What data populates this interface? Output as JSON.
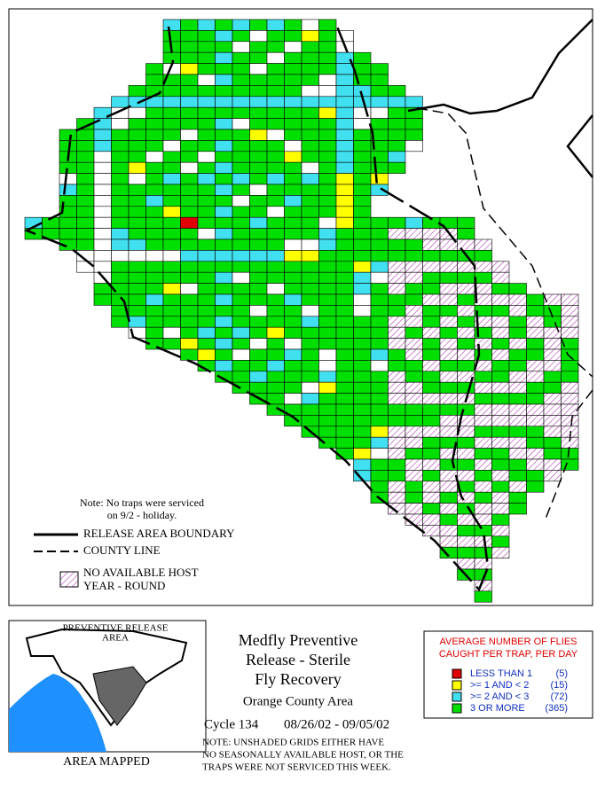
{
  "map_notes": {
    "note": [
      "Note: No traps were serviced",
      "on 9/2 - holiday."
    ],
    "boundary": "RELEASE AREA BOUNDARY",
    "county": "COUNTY LINE",
    "no_host": [
      "NO AVAILABLE HOST",
      "YEAR - ROUND"
    ]
  },
  "inset": {
    "title": [
      "PREVENTIVE RELEASE",
      "AREA"
    ],
    "caption": "AREA MAPPED"
  },
  "title": [
    "Medfly Preventive",
    "Release - Sterile",
    "Fly Recovery"
  ],
  "area": "Orange County Area",
  "cycle": {
    "label": "Cycle 134",
    "dates": "08/26/02 - 09/05/02"
  },
  "footnote": [
    "NOTE: UNSHADED GRIDS EITHER HAVE",
    "NO SEASONALLY AVAILABLE HOST, OR THE",
    "TRAPS WERE NOT SERVICED THIS WEEK."
  ],
  "legend": {
    "title": [
      "AVERAGE NUMBER OF FLIES",
      "CAUGHT PER TRAP, PER DAY"
    ],
    "items": [
      {
        "label": "LESS THAN 1",
        "count": "(5)",
        "color": "#e00000"
      },
      {
        "label": ">= 1 AND < 2",
        "count": "(15)",
        "color": "#ffff00"
      },
      {
        "label": ">= 2 AND < 3",
        "count": "(72)",
        "color": "#40e0f0"
      },
      {
        "label": "3 OR MORE",
        "count": "(365)",
        "color": "#00e000"
      }
    ]
  }
}
